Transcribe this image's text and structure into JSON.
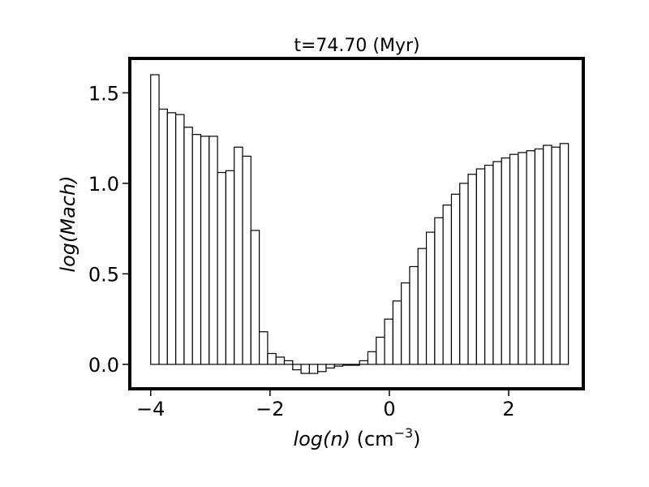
{
  "chart_data": {
    "type": "bar",
    "title": "t=74.70 (Myr)",
    "xlabel": {
      "var": "log(n)",
      "unit_prefix": "(cm",
      "unit_exp": "−3",
      "unit_suffix": ")"
    },
    "ylabel": "log(Mach)",
    "xlim": [
      -4.35,
      3.25
    ],
    "ylim": [
      -0.135,
      1.69
    ],
    "xticks": [
      -4,
      -2,
      0,
      2
    ],
    "xtick_labels": [
      "−4",
      "−2",
      "0",
      "2"
    ],
    "yticks": [
      0.0,
      0.5,
      1.0,
      1.5
    ],
    "ytick_labels": [
      "0.0",
      "0.5",
      "1.0",
      "1.5"
    ],
    "bin_start": -4.0,
    "bin_width": 0.14,
    "values": [
      1.6,
      1.41,
      1.39,
      1.38,
      1.31,
      1.27,
      1.26,
      1.26,
      1.06,
      1.07,
      1.2,
      1.15,
      0.74,
      0.18,
      0.06,
      0.04,
      0.02,
      -0.03,
      -0.05,
      -0.05,
      -0.04,
      -0.02,
      -0.01,
      -0.005,
      -0.005,
      0.02,
      0.07,
      0.15,
      0.25,
      0.35,
      0.45,
      0.54,
      0.64,
      0.73,
      0.81,
      0.88,
      0.94,
      1.0,
      1.05,
      1.08,
      1.1,
      1.12,
      1.14,
      1.16,
      1.17,
      1.18,
      1.19,
      1.21,
      1.2,
      1.22
    ],
    "bar_fill": "#ffffff",
    "bar_edge": "#000000",
    "grid": false
  }
}
